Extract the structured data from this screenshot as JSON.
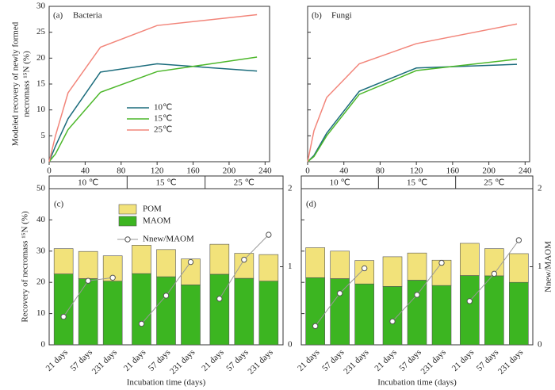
{
  "chart_data": [
    {
      "type": "line",
      "label": "(a)",
      "title": "Bacteria",
      "y_label": [
        "Modeled recovery of newly formed",
        "necromass ¹⁵N (%)"
      ],
      "x": [
        0,
        7,
        21,
        57,
        120,
        231
      ],
      "xlim": [
        0,
        245
      ],
      "xticks": [
        0,
        40,
        80,
        120,
        160,
        200,
        240
      ],
      "ylim": [
        0,
        30
      ],
      "yticks": [
        0,
        5,
        10,
        15,
        20,
        25,
        30
      ],
      "show_ytick_labels": true,
      "legend": true,
      "series": [
        {
          "name": "10℃",
          "color": "#1b6c7c",
          "values": [
            0,
            3,
            8.3,
            17.3,
            18.9,
            17.5
          ]
        },
        {
          "name": "15℃",
          "color": "#4cb72a",
          "values": [
            0,
            1.5,
            6.2,
            13.4,
            17.4,
            20.2
          ]
        },
        {
          "name": "25℃",
          "color": "#f2857a",
          "values": [
            0,
            5,
            13.3,
            22.1,
            26.3,
            28.4
          ]
        }
      ]
    },
    {
      "type": "line",
      "label": "(b)",
      "title": "Fungi",
      "x": [
        0,
        7,
        21,
        57,
        120,
        231
      ],
      "xlim": [
        0,
        245
      ],
      "xticks": [
        0,
        40,
        80,
        120,
        160,
        200,
        240
      ],
      "ylim": [
        0,
        30
      ],
      "yticks": [
        0,
        5,
        10,
        15,
        20,
        25,
        30
      ],
      "show_ytick_labels": false,
      "legend": false,
      "series": [
        {
          "name": "10℃",
          "color": "#1b6c7c",
          "values": [
            0,
            1.2,
            5.5,
            13.6,
            18.1,
            18.8
          ]
        },
        {
          "name": "15℃",
          "color": "#4cb72a",
          "values": [
            0,
            1.0,
            5.0,
            13.0,
            17.6,
            19.8
          ]
        },
        {
          "name": "25℃",
          "color": "#f2857a",
          "values": [
            0,
            6,
            12.4,
            18.9,
            22.8,
            26.6
          ]
        }
      ]
    },
    {
      "type": "stacked_bar",
      "label": "(c)",
      "y_label": "Recovery of necromass ¹⁵N (%)",
      "x_label": "Incubation time (days)",
      "groups": [
        "10 ℃",
        "15 ℃",
        "25 ℃"
      ],
      "categories": [
        "21 days",
        "57 days",
        "231 days",
        "21 days",
        "57 days",
        "231 days",
        "21 days",
        "57 days",
        "231 days"
      ],
      "ylim": [
        0,
        50
      ],
      "yticks": [
        0,
        10,
        20,
        30,
        40,
        50
      ],
      "y2lim": [
        0,
        2
      ],
      "y2ticks": [
        0,
        1,
        2
      ],
      "show_ytick_labels": true,
      "legend": true,
      "series": [
        {
          "name": "MAOM",
          "color": "#3cb521",
          "values": [
            22.7,
            21.2,
            20.4,
            22.8,
            21.8,
            19.2,
            22.6,
            21.3,
            20.4
          ]
        },
        {
          "name": "POM",
          "color": "#f2e27a",
          "values": [
            8.1,
            8.7,
            8.1,
            9.1,
            8.7,
            8.3,
            9.6,
            8.0,
            8.5
          ]
        },
        {
          "name": "Nnew/MAOM",
          "color": "#999999",
          "axis": "y2",
          "values": [
            0.36,
            0.82,
            0.86,
            0.27,
            0.63,
            1.06,
            0.59,
            1.09,
            1.41
          ]
        }
      ]
    },
    {
      "type": "stacked_bar",
      "label": "(d)",
      "y2_label": "Nnew/MAOM",
      "x_label": "Incubation time (days)",
      "groups": [
        "10 ℃",
        "15 ℃",
        "25 ℃"
      ],
      "categories": [
        "21 days",
        "57 days",
        "231 days",
        "21 days",
        "57 days",
        "231 days",
        "21 days",
        "57 days",
        "231 days"
      ],
      "ylim": [
        0,
        50
      ],
      "yticks": [
        0,
        10,
        20,
        30,
        40,
        50
      ],
      "y2lim": [
        0,
        2
      ],
      "y2ticks": [
        0,
        1,
        2
      ],
      "show_ytick_labels": false,
      "legend": false,
      "series": [
        {
          "name": "MAOM",
          "color": "#3cb521",
          "values": [
            21.5,
            21.2,
            19.5,
            18.7,
            20.7,
            19.0,
            22.2,
            22.1,
            20.0
          ]
        },
        {
          "name": "POM",
          "color": "#f2e27a",
          "values": [
            9.6,
            8.8,
            7.5,
            9.5,
            8.7,
            8.1,
            10.3,
            8.7,
            9.2
          ]
        },
        {
          "name": "Nnew/MAOM",
          "color": "#999999",
          "axis": "y2",
          "values": [
            0.24,
            0.66,
            0.98,
            0.3,
            0.64,
            1.05,
            0.56,
            0.91,
            1.34
          ]
        }
      ]
    }
  ]
}
